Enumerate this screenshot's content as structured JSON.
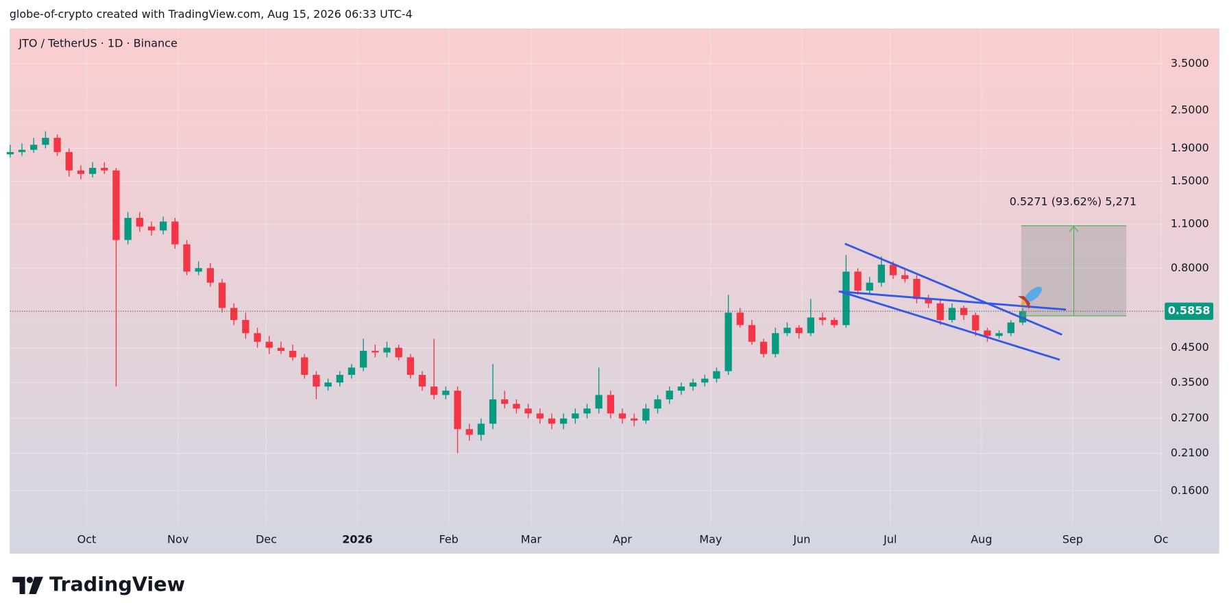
{
  "chart_data": {
    "type": "candlestick",
    "header": "globe-of-crypto created with TradingView.com, Aug 15, 2026 06:33 UTC-4",
    "title": "JTO / TetherUS · 1D · Binance",
    "brand": "TradingView",
    "annotation": "0.5271 (93.62%) 5,271",
    "last_price": 0.5858,
    "log_scale": true,
    "grid": true,
    "up_color": "#089981",
    "down_color": "#f23645",
    "ylim": [
      0.125,
      4.5
    ],
    "yticks": [
      {
        "value": 3.5,
        "label": "3.5000"
      },
      {
        "value": 2.5,
        "label": "2.5000"
      },
      {
        "value": 1.9,
        "label": "1.9000"
      },
      {
        "value": 1.5,
        "label": "1.5000"
      },
      {
        "value": 1.1,
        "label": "1.1000"
      },
      {
        "value": 0.8,
        "label": "0.8000"
      },
      {
        "value": 0.45,
        "label": "0.4500"
      },
      {
        "value": 0.35,
        "label": "0.3500"
      },
      {
        "value": 0.27,
        "label": "0.2700"
      },
      {
        "value": 0.21,
        "label": "0.2100"
      },
      {
        "value": 0.16,
        "label": "0.1600"
      }
    ],
    "xlim": [
      -26,
      366
    ],
    "xticks": [
      {
        "value": 0,
        "label": "Oct"
      },
      {
        "value": 31,
        "label": "Nov"
      },
      {
        "value": 61,
        "label": "Dec"
      },
      {
        "value": 92,
        "label": "2026"
      },
      {
        "value": 123,
        "label": "Feb"
      },
      {
        "value": 151,
        "label": "Mar"
      },
      {
        "value": 182,
        "label": "Apr"
      },
      {
        "value": 212,
        "label": "May"
      },
      {
        "value": 243,
        "label": "Jun"
      },
      {
        "value": 273,
        "label": "Jul"
      },
      {
        "value": 304,
        "label": "Aug"
      },
      {
        "value": 335,
        "label": "Sep"
      },
      {
        "value": 365,
        "label": "Oc"
      }
    ],
    "x": [
      -26,
      -22,
      -18,
      -14,
      -10,
      -6,
      -2,
      2,
      6,
      10,
      14,
      18,
      22,
      26,
      30,
      34,
      38,
      42,
      46,
      50,
      54,
      58,
      62,
      66,
      70,
      74,
      78,
      82,
      86,
      90,
      94,
      98,
      102,
      106,
      110,
      114,
      118,
      122,
      126,
      130,
      134,
      138,
      142,
      146,
      150,
      154,
      158,
      162,
      166,
      170,
      174,
      178,
      182,
      186,
      190,
      194,
      198,
      202,
      206,
      210,
      214,
      218,
      222,
      226,
      230,
      234,
      238,
      242,
      246,
      250,
      254,
      258,
      262,
      266,
      270,
      274,
      278,
      282,
      286,
      290,
      294,
      298,
      302,
      306,
      310,
      314,
      318
    ],
    "open": [
      1.82,
      1.85,
      1.88,
      1.95,
      2.05,
      1.85,
      1.62,
      1.58,
      1.65,
      1.62,
      0.98,
      1.15,
      1.08,
      1.05,
      1.12,
      0.95,
      0.78,
      0.8,
      0.72,
      0.6,
      0.55,
      0.5,
      0.47,
      0.45,
      0.44,
      0.42,
      0.37,
      0.34,
      0.35,
      0.37,
      0.39,
      0.44,
      0.435,
      0.45,
      0.42,
      0.37,
      0.34,
      0.32,
      0.33,
      0.25,
      0.24,
      0.26,
      0.31,
      0.3,
      0.29,
      0.28,
      0.27,
      0.26,
      0.27,
      0.28,
      0.29,
      0.32,
      0.28,
      0.27,
      0.266,
      0.29,
      0.31,
      0.33,
      0.34,
      0.35,
      0.36,
      0.38,
      0.58,
      0.53,
      0.47,
      0.43,
      0.5,
      0.52,
      0.5,
      0.56,
      0.55,
      0.53,
      0.78,
      0.68,
      0.72,
      0.82,
      0.76,
      0.74,
      0.64,
      0.62,
      0.55,
      0.6,
      0.57,
      0.51,
      0.49,
      0.5,
      0.54
    ],
    "high": [
      1.95,
      1.97,
      2.05,
      2.15,
      2.1,
      1.9,
      1.68,
      1.72,
      1.72,
      1.65,
      1.2,
      1.2,
      1.12,
      1.16,
      1.15,
      0.98,
      0.84,
      0.83,
      0.74,
      0.62,
      0.58,
      0.52,
      0.49,
      0.47,
      0.46,
      0.43,
      0.38,
      0.36,
      0.38,
      0.4,
      0.48,
      0.46,
      0.47,
      0.46,
      0.43,
      0.38,
      0.48,
      0.34,
      0.34,
      0.26,
      0.27,
      0.4,
      0.33,
      0.31,
      0.3,
      0.29,
      0.28,
      0.28,
      0.29,
      0.3,
      0.39,
      0.33,
      0.29,
      0.28,
      0.3,
      0.32,
      0.34,
      0.35,
      0.36,
      0.37,
      0.39,
      0.66,
      0.6,
      0.55,
      0.48,
      0.52,
      0.54,
      0.53,
      0.64,
      0.58,
      0.56,
      0.88,
      0.8,
      0.75,
      0.87,
      0.84,
      0.79,
      0.76,
      0.66,
      0.64,
      0.62,
      0.61,
      0.58,
      0.52,
      0.51,
      0.55,
      0.6
    ],
    "low": [
      1.78,
      1.8,
      1.84,
      1.9,
      1.8,
      1.55,
      1.52,
      1.54,
      1.58,
      0.34,
      0.95,
      1.04,
      1.01,
      1.02,
      0.92,
      0.76,
      0.76,
      0.7,
      0.58,
      0.53,
      0.48,
      0.45,
      0.43,
      0.43,
      0.41,
      0.36,
      0.31,
      0.33,
      0.34,
      0.36,
      0.38,
      0.42,
      0.42,
      0.41,
      0.36,
      0.33,
      0.31,
      0.31,
      0.21,
      0.23,
      0.23,
      0.25,
      0.29,
      0.28,
      0.27,
      0.26,
      0.25,
      0.25,
      0.26,
      0.27,
      0.28,
      0.27,
      0.26,
      0.255,
      0.26,
      0.28,
      0.3,
      0.32,
      0.33,
      0.34,
      0.35,
      0.37,
      0.52,
      0.46,
      0.42,
      0.42,
      0.49,
      0.48,
      0.49,
      0.53,
      0.52,
      0.52,
      0.66,
      0.66,
      0.7,
      0.74,
      0.72,
      0.62,
      0.6,
      0.53,
      0.54,
      0.55,
      0.49,
      0.47,
      0.48,
      0.49,
      0.53
    ],
    "close": [
      1.85,
      1.88,
      1.95,
      2.05,
      1.85,
      1.62,
      1.58,
      1.65,
      1.62,
      0.98,
      1.15,
      1.08,
      1.05,
      1.12,
      0.95,
      0.78,
      0.8,
      0.72,
      0.6,
      0.55,
      0.5,
      0.47,
      0.45,
      0.44,
      0.42,
      0.37,
      0.34,
      0.35,
      0.37,
      0.39,
      0.44,
      0.435,
      0.45,
      0.42,
      0.37,
      0.34,
      0.32,
      0.33,
      0.25,
      0.24,
      0.26,
      0.31,
      0.3,
      0.29,
      0.28,
      0.27,
      0.26,
      0.27,
      0.28,
      0.29,
      0.32,
      0.28,
      0.27,
      0.266,
      0.29,
      0.31,
      0.33,
      0.34,
      0.35,
      0.36,
      0.38,
      0.58,
      0.53,
      0.47,
      0.43,
      0.5,
      0.52,
      0.5,
      0.56,
      0.55,
      0.53,
      0.78,
      0.68,
      0.72,
      0.82,
      0.76,
      0.74,
      0.64,
      0.62,
      0.55,
      0.6,
      0.57,
      0.51,
      0.49,
      0.5,
      0.54,
      0.5858
    ]
  }
}
